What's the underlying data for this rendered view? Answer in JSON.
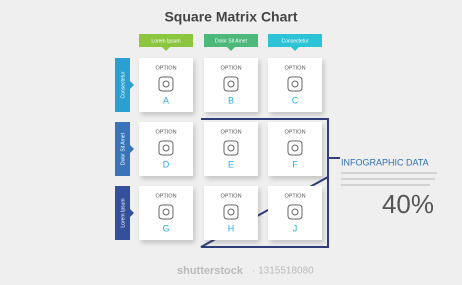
{
  "title": "Square Matrix Chart",
  "columns": [
    "Lorem Ipsum",
    "Dolor Sit Amet",
    "Consectetur"
  ],
  "rows": [
    "Consectetur",
    "Dolor Sit Amet",
    "Lorem Ipsum"
  ],
  "cells": [
    {
      "label": "OPTION",
      "letter": "A"
    },
    {
      "label": "OPTION",
      "letter": "B"
    },
    {
      "label": "OPTION",
      "letter": "C"
    },
    {
      "label": "OPTION",
      "letter": "D"
    },
    {
      "label": "OPTION",
      "letter": "E"
    },
    {
      "label": "OPTION",
      "letter": "F"
    },
    {
      "label": "OPTION",
      "letter": "G"
    },
    {
      "label": "OPTION",
      "letter": "H"
    },
    {
      "label": "OPTION",
      "letter": "J"
    }
  ],
  "callout": {
    "title": "INFOGRAPHIC DATA",
    "value": "40%"
  },
  "watermark": {
    "brand": "shutterstock",
    "id": "· 1315518080"
  }
}
